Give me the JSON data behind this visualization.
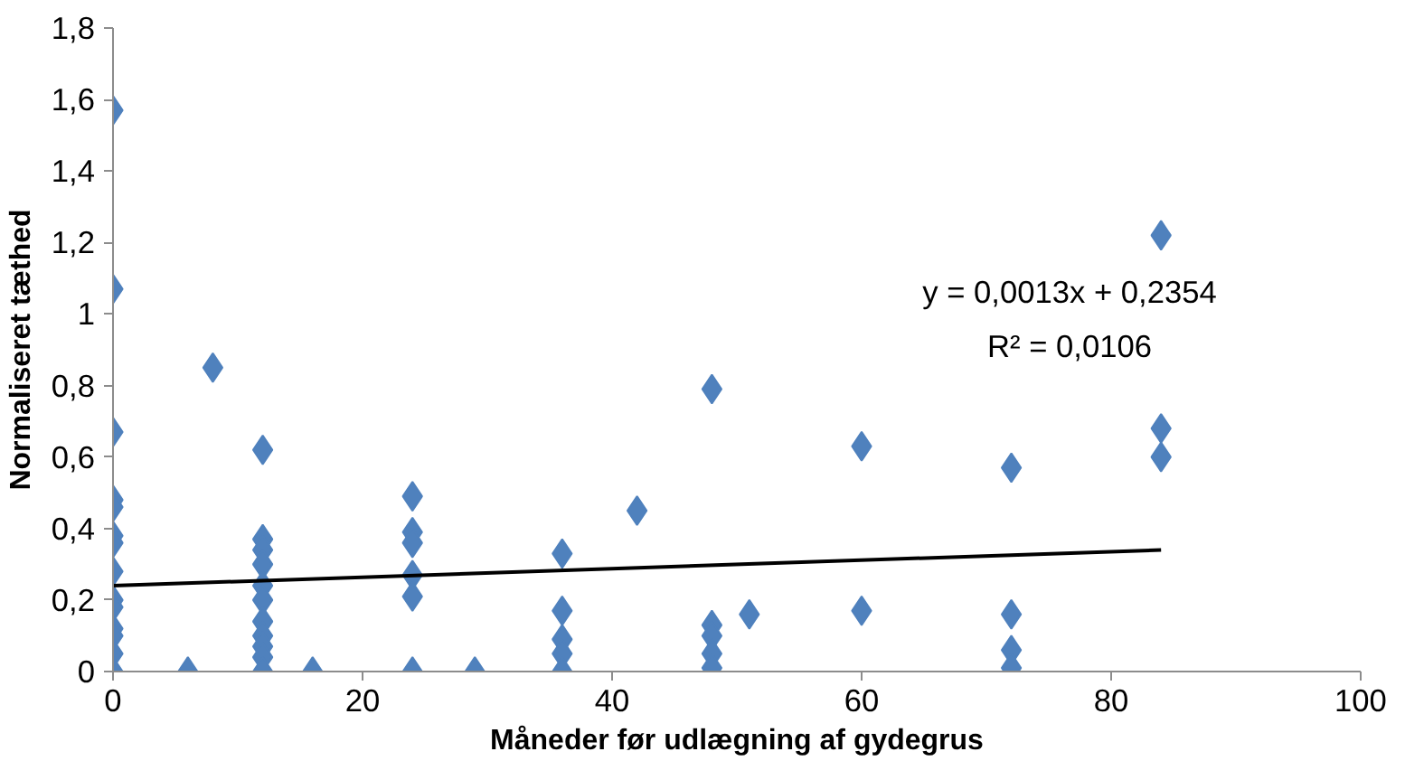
{
  "chart_data": {
    "type": "scatter",
    "xlabel": "Måneder før udlægning af gydegrus",
    "ylabel": "Normaliseret tæthed",
    "xlim": [
      0,
      100
    ],
    "ylim": [
      0,
      1.8
    ],
    "xticks": [
      0,
      20,
      40,
      60,
      80,
      100
    ],
    "yticks": [
      0,
      {
        "value": 0.2,
        "label": "0,2"
      },
      {
        "value": 0.4,
        "label": "0,4"
      },
      {
        "value": 0.6,
        "label": "0,6"
      },
      {
        "value": 0.8,
        "label": "0,8"
      },
      1,
      {
        "value": 1.2,
        "label": "1,2"
      },
      {
        "value": 1.4,
        "label": "1,4"
      },
      {
        "value": 1.6,
        "label": "1,6"
      },
      {
        "value": 1.8,
        "label": "1,8"
      }
    ],
    "grid": false,
    "series": [
      {
        "color": "#4f81bd",
        "marker": "diamond",
        "x": [
          0,
          0,
          0,
          0,
          0,
          0,
          0,
          0,
          0,
          0,
          0,
          0,
          0,
          0,
          6,
          8,
          12,
          12,
          12,
          12,
          12,
          12,
          12,
          12,
          12,
          12,
          12,
          16,
          24,
          24,
          24,
          24,
          24,
          24,
          29,
          36,
          36,
          36,
          36,
          36,
          42,
          48,
          48,
          48,
          48,
          48,
          51,
          60,
          60,
          72,
          72,
          72,
          72,
          84,
          84,
          84
        ],
        "values": [
          1.57,
          1.07,
          0.67,
          0.48,
          0.46,
          0.38,
          0.36,
          0.28,
          0.2,
          0.18,
          0.12,
          0.1,
          0.05,
          0,
          0,
          0.85,
          0.62,
          0.37,
          0.34,
          0.3,
          0.24,
          0.2,
          0.14,
          0.1,
          0.07,
          0.04,
          0,
          0,
          0.49,
          0.39,
          0.36,
          0.27,
          0.21,
          0,
          0,
          0.33,
          0.17,
          0.09,
          0.05,
          0,
          0.45,
          0.79,
          0.13,
          0.1,
          0.05,
          0.01,
          0.16,
          0.63,
          0.17,
          0.57,
          0.16,
          0.06,
          0.01,
          1.22,
          0.68,
          0.6
        ]
      },
      {
        "type": "line",
        "color": "#000000",
        "line_style": "solid",
        "x": [
          0,
          84
        ],
        "values": [
          0.24,
          0.34
        ]
      }
    ],
    "annotations": [
      "y = 0,0013x + 0,2354",
      "R² = 0,0106"
    ]
  }
}
